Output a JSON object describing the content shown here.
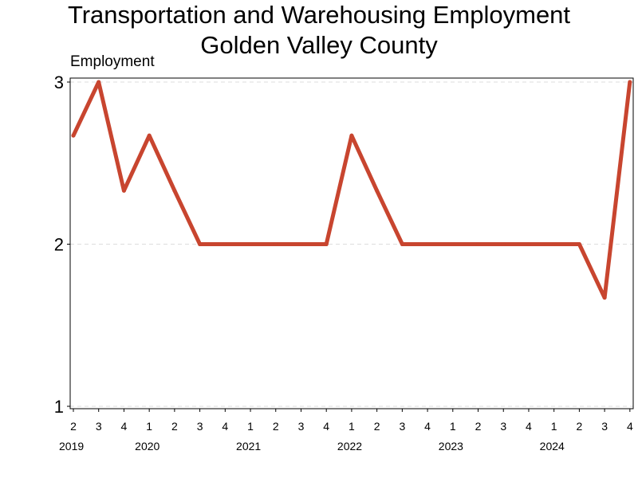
{
  "chart_data": {
    "type": "line",
    "title": "Transportation and Warehousing Employment",
    "subtitle": "Golden Valley County",
    "ylabel": "Employment",
    "xlabel": "",
    "ylim": [
      1,
      3
    ],
    "y_ticks": [
      "1",
      "2",
      "3"
    ],
    "grid": "horizontal dashed",
    "line_color": "#c8452f",
    "x_quarter_labels": [
      "2",
      "3",
      "4",
      "1",
      "2",
      "3",
      "4",
      "1",
      "2",
      "3",
      "4",
      "1",
      "2",
      "3",
      "4",
      "1",
      "2",
      "3",
      "4",
      "1",
      "2",
      "3",
      "4"
    ],
    "x_year_labels": [
      {
        "year": "2019",
        "quarter_index": 0
      },
      {
        "year": "2020",
        "quarter_index": 3
      },
      {
        "year": "2021",
        "quarter_index": 7
      },
      {
        "year": "2022",
        "quarter_index": 11
      },
      {
        "year": "2023",
        "quarter_index": 15
      },
      {
        "year": "2024",
        "quarter_index": 19
      }
    ],
    "series": [
      {
        "values": [
          2.67,
          3,
          2.33,
          2.67,
          2.33,
          2,
          2,
          2,
          2,
          2,
          2,
          2.67,
          2.33,
          2,
          2,
          2,
          2,
          2,
          2,
          2,
          2,
          1.67,
          3
        ]
      }
    ]
  }
}
